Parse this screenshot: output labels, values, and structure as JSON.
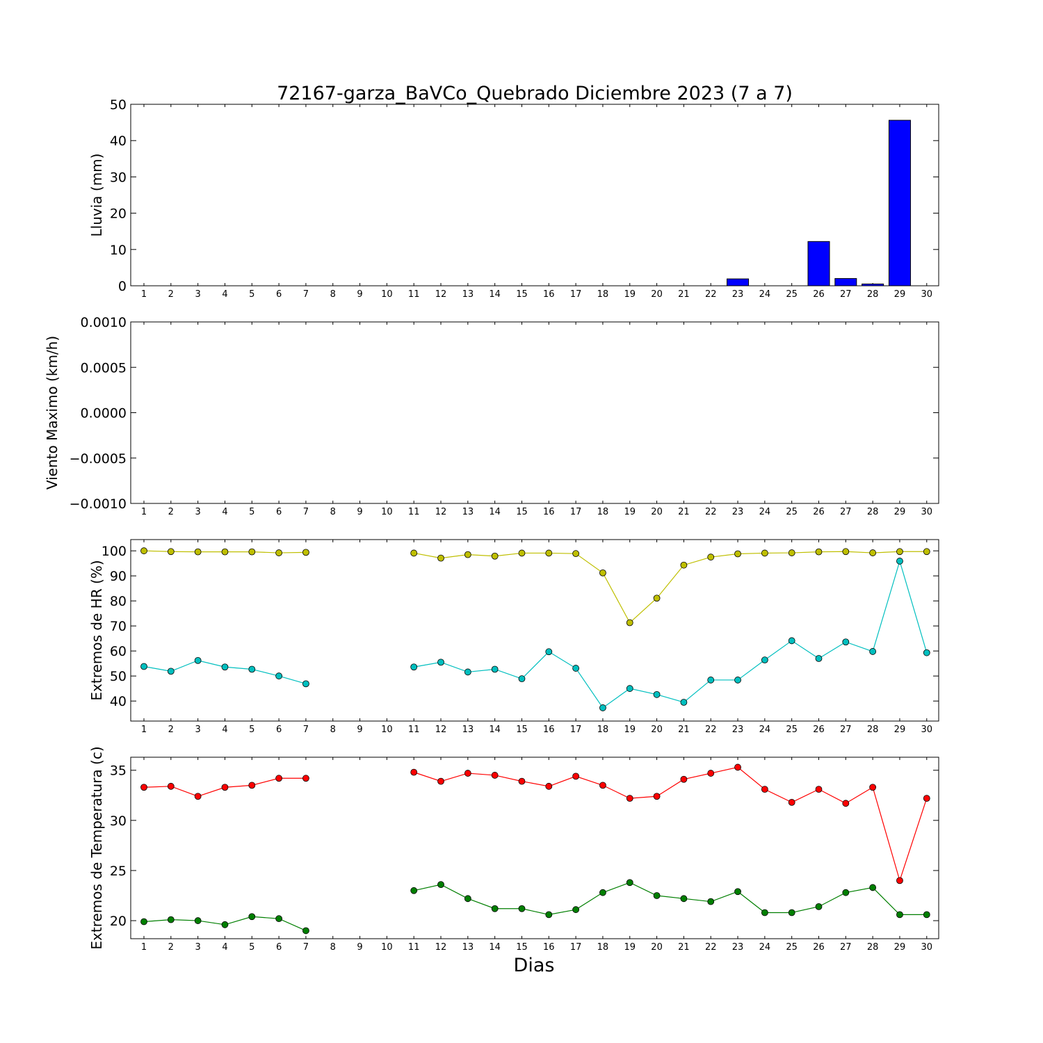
{
  "title": "72167-garza_BaVCo_Quebrado Diciembre 2023  (7 a 7)",
  "xlabel": "Dias",
  "colors": {
    "rain": "#0000ff",
    "hr_max": "#bfbf00",
    "hr_min": "#00bfbf",
    "t_max": "#ff0000",
    "t_min": "#007f00"
  },
  "chart_data": [
    {
      "type": "bar",
      "ylabel": "Lluvia (mm)",
      "ylim": [
        0,
        50
      ],
      "yticks": [
        "0",
        "10",
        "20",
        "30",
        "40",
        "50"
      ],
      "categories": [
        1,
        2,
        3,
        4,
        5,
        6,
        7,
        8,
        9,
        10,
        11,
        12,
        13,
        14,
        15,
        16,
        17,
        18,
        19,
        20,
        21,
        22,
        23,
        24,
        25,
        26,
        27,
        28,
        29,
        30
      ],
      "values": [
        0,
        0,
        0,
        0,
        0,
        0,
        0,
        0,
        0,
        0,
        0,
        0,
        0,
        0,
        0,
        0,
        0,
        0,
        0,
        0,
        0,
        0,
        1.9,
        0,
        0,
        12.2,
        2.0,
        0.5,
        45.6,
        0
      ]
    },
    {
      "type": "line",
      "ylabel": "Viento Maximo (km/h)",
      "ylim": [
        -0.001,
        0.001
      ],
      "yticks": [
        "−0.0010",
        "−0.0005",
        "0.0000",
        "0.0005",
        "0.0010"
      ],
      "categories": [
        1,
        2,
        3,
        4,
        5,
        6,
        7,
        8,
        9,
        10,
        11,
        12,
        13,
        14,
        15,
        16,
        17,
        18,
        19,
        20,
        21,
        22,
        23,
        24,
        25,
        26,
        27,
        28,
        29,
        30
      ],
      "series": []
    },
    {
      "type": "line",
      "ylabel": "Extremos de HR (%)",
      "ylim": [
        32,
        104.5
      ],
      "yticks": [
        "40",
        "50",
        "60",
        "70",
        "80",
        "90",
        "100"
      ],
      "categories": [
        1,
        2,
        3,
        4,
        5,
        6,
        7,
        8,
        9,
        10,
        11,
        12,
        13,
        14,
        15,
        16,
        17,
        18,
        19,
        20,
        21,
        22,
        23,
        24,
        25,
        26,
        27,
        28,
        29,
        30
      ],
      "series": [
        {
          "color_key": "hr_max",
          "values": [
            100,
            99.7,
            99.6,
            99.6,
            99.6,
            99.2,
            99.4,
            null,
            null,
            null,
            99.1,
            97.1,
            98.5,
            97.9,
            99.1,
            99.1,
            98.9,
            91.2,
            71.3,
            81.1,
            94.3,
            97.5,
            98.8,
            99.1,
            99.2,
            99.6,
            99.7,
            99.2,
            99.7,
            99.7
          ]
        },
        {
          "color_key": "hr_min",
          "values": [
            53.8,
            51.9,
            56.2,
            53.6,
            52.7,
            50.0,
            46.9,
            null,
            null,
            null,
            53.6,
            55.5,
            51.6,
            52.7,
            48.9,
            59.7,
            53.1,
            37.3,
            45.0,
            42.6,
            39.5,
            48.4,
            48.4,
            56.4,
            64.1,
            57.0,
            63.6,
            59.8,
            95.9,
            59.3
          ]
        }
      ]
    },
    {
      "type": "line",
      "ylabel": "Extremos de Temperatura (c)",
      "ylim": [
        18.2,
        36.3
      ],
      "yticks": [
        "20",
        "25",
        "30",
        "35"
      ],
      "categories": [
        1,
        2,
        3,
        4,
        5,
        6,
        7,
        8,
        9,
        10,
        11,
        12,
        13,
        14,
        15,
        16,
        17,
        18,
        19,
        20,
        21,
        22,
        23,
        24,
        25,
        26,
        27,
        28,
        29,
        30
      ],
      "series": [
        {
          "color_key": "t_max",
          "values": [
            33.3,
            33.4,
            32.4,
            33.3,
            33.5,
            34.2,
            34.2,
            null,
            null,
            null,
            34.8,
            33.9,
            34.7,
            34.5,
            33.9,
            33.4,
            34.4,
            33.5,
            32.2,
            32.4,
            34.1,
            34.7,
            35.3,
            33.1,
            31.8,
            33.1,
            31.7,
            33.3,
            24.0,
            32.2
          ]
        },
        {
          "color_key": "t_min",
          "values": [
            19.9,
            20.1,
            20.0,
            19.6,
            20.4,
            20.2,
            19.0,
            null,
            null,
            null,
            23.0,
            23.6,
            22.2,
            21.2,
            21.2,
            20.6,
            21.1,
            22.8,
            23.8,
            22.5,
            22.2,
            21.9,
            22.9,
            20.8,
            20.8,
            21.4,
            22.8,
            23.3,
            20.6,
            20.6
          ]
        }
      ]
    }
  ]
}
